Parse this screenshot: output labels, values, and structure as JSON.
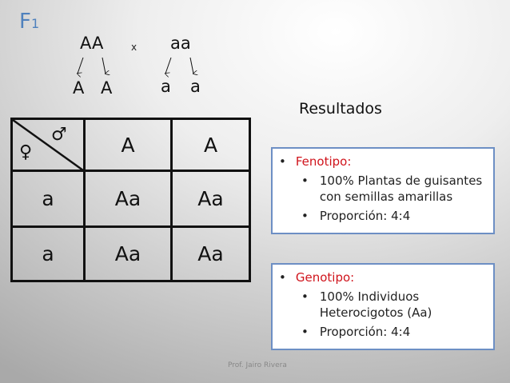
{
  "title": {
    "main": "F",
    "sub": "1"
  },
  "cross": {
    "parent1": "AA",
    "operator": "x",
    "parent2": "aa",
    "gametes1": [
      "A",
      "A"
    ],
    "gametes2": [
      "a",
      "a"
    ]
  },
  "punnett": {
    "male_symbol": "♂",
    "female_symbol": "♀",
    "columns": [
      "A",
      "A"
    ],
    "rows": [
      {
        "header": "a",
        "cells": [
          "Aa",
          "Aa"
        ]
      },
      {
        "header": "a",
        "cells": [
          "Aa",
          "Aa"
        ]
      }
    ]
  },
  "results": {
    "heading": "Resultados",
    "fenotipo": {
      "label": "Fenotipo:",
      "items": [
        "100% Plantas de guisantes con semillas amarillas",
        "Proporción: 4:4"
      ]
    },
    "genotipo": {
      "label": "Genotipo:",
      "items": [
        "100% Individuos Heterocigotos (Aa)",
        "Proporción: 4:4"
      ]
    }
  },
  "footer": "Prof. Jairo Rivera",
  "colors": {
    "title": "#4f81bd",
    "heading": "#d0141c",
    "box_border": "#6d8fc4"
  }
}
